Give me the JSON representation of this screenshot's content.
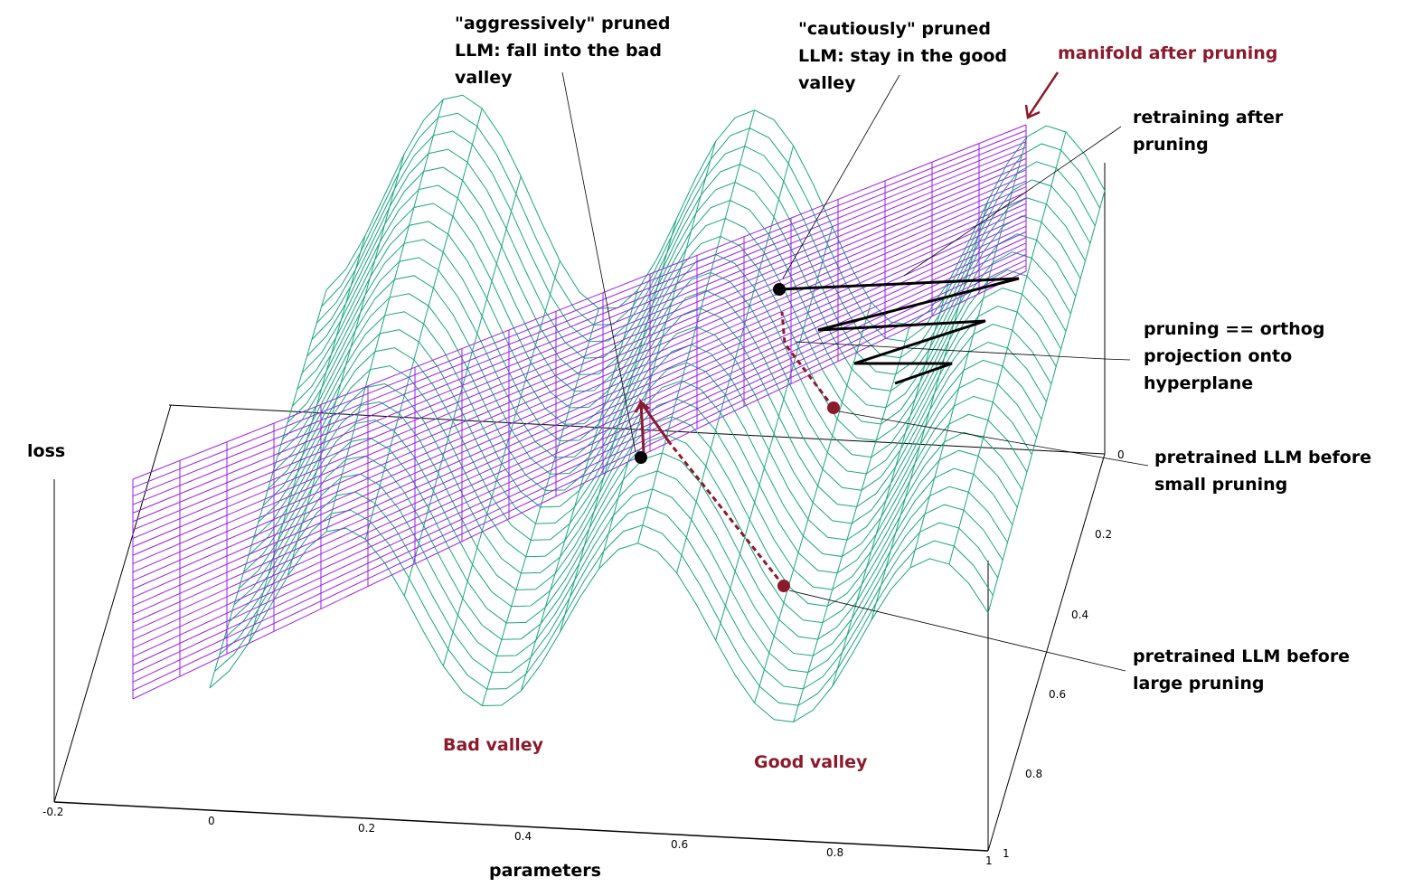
{
  "axes": {
    "zlabel": "loss",
    "xlabel": "parameters",
    "x_ticks": [
      "-0.2",
      "0",
      "0.2",
      "0.4",
      "0.6",
      "0.8",
      "1"
    ],
    "y_ticks": [
      "0",
      "0.2",
      "0.4",
      "0.6",
      "0.8",
      "1"
    ]
  },
  "annotations": {
    "aggressive": "\"aggressively\" pruned\nLLM: fall into the bad\nvalley",
    "cautious": "\"cautiously\" pruned\nLLM: stay in the good\nvalley",
    "manifold": "manifold after pruning",
    "retraining": "retraining after\npruning",
    "projection": "pruning == orthog\nprojection onto\nhyperplane",
    "small": "pretrained LLM before\nsmall pruning",
    "large": "pretrained LLM before\nlarge pruning",
    "bad_valley": "Bad valley",
    "good_valley": "Good valley"
  },
  "colors": {
    "surface": "#1aa57f",
    "plane": "#9b1fe8",
    "accent": "#8b1a2b"
  }
}
